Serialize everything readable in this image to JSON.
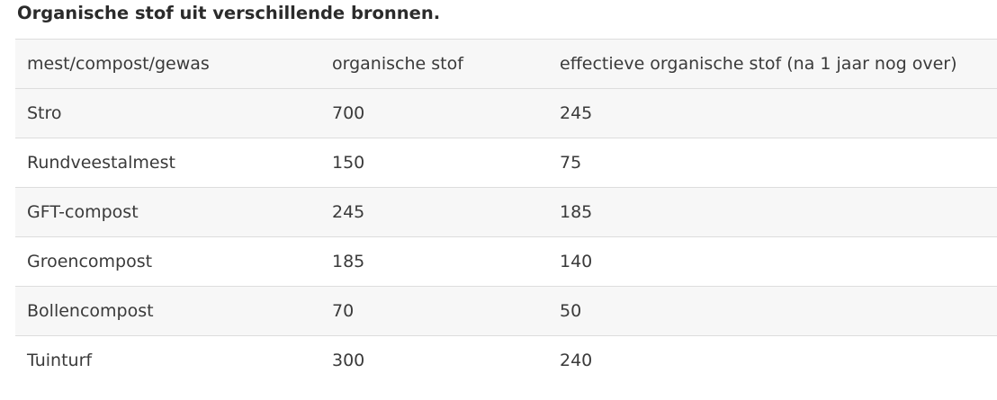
{
  "title": "Organische stof uit verschillende bronnen.",
  "table": {
    "headers": [
      "mest/compost/gewas",
      "organische stof",
      "effectieve organische stof (na 1 jaar nog over)"
    ],
    "rows": [
      [
        "Stro",
        "700",
        "245"
      ],
      [
        "Rundveestalmest",
        "150",
        "75"
      ],
      [
        "GFT-compost",
        "245",
        "185"
      ],
      [
        "Groencompost",
        "185",
        "140"
      ],
      [
        "Bollencompost",
        "70",
        "50"
      ],
      [
        "Tuinturf",
        "300",
        "240"
      ]
    ]
  }
}
